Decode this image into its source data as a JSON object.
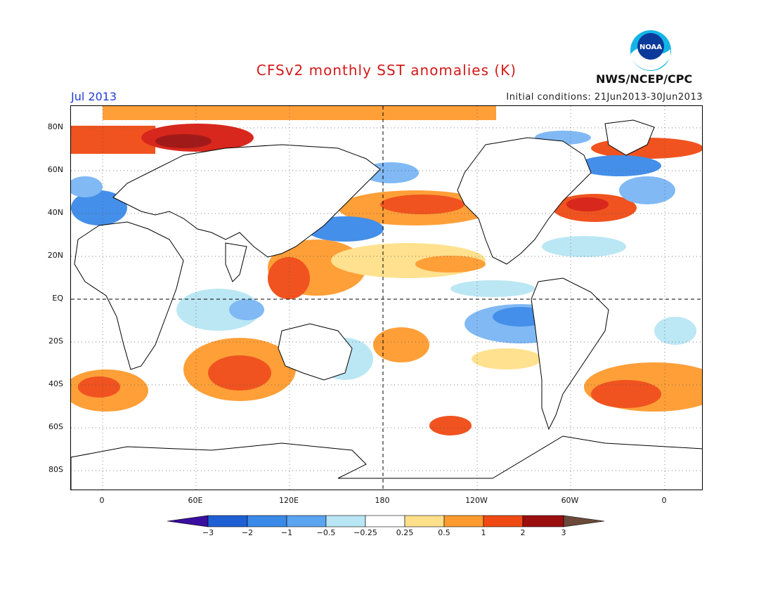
{
  "title": "CFSv2 monthly SST anomalies (K)",
  "month": "Jul 2013",
  "initial_conditions": "Initial conditions: 21Jun2013-30Jun2013",
  "org_label": "NWS/NCEP/CPC",
  "logo_text": "NOAA",
  "lat_labels": [
    "80N",
    "60N",
    "40N",
    "20N",
    "EQ",
    "20S",
    "40S",
    "60S",
    "80S"
  ],
  "lon_labels": [
    "0",
    "60E",
    "120E",
    "180",
    "120W",
    "60W",
    "0"
  ],
  "colorbar": {
    "labels": [
      "−3",
      "−2",
      "−1",
      "−0.5",
      "−0.25",
      "0.25",
      "0.5",
      "1",
      "2",
      "3"
    ],
    "colors": [
      "#3a0fa0",
      "#1e5fd4",
      "#3a8ae8",
      "#7ab6f4",
      "#b8e6f4",
      "#ffffff",
      "#ffe08a",
      "#ff9a2e",
      "#f04a14",
      "#d61c10",
      "#9c0e0e",
      "#6b4a3a"
    ]
  }
}
